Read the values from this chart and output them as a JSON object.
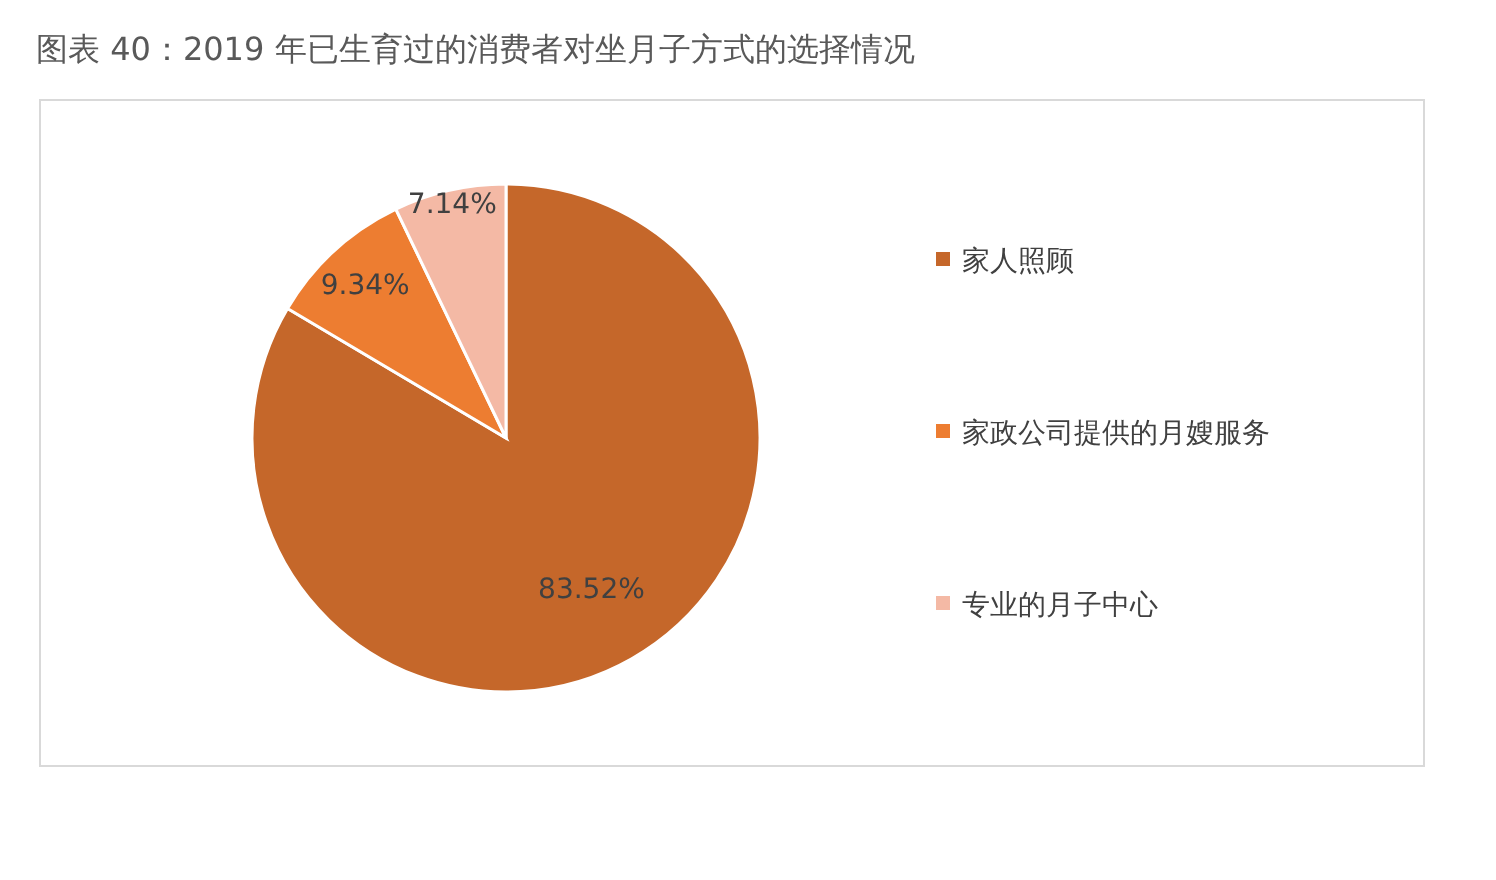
{
  "chart_data": {
    "type": "pie",
    "title": "图表 40：2019 年已生育过的消费者对坐月子方式的选择情况",
    "categories": [
      "家人照顾",
      "家政公司提供的月嫂服务",
      "专业的月子中心"
    ],
    "values": [
      83.52,
      9.34,
      7.14
    ],
    "colors": [
      "#c5672a",
      "#ed7d31",
      "#f4b9a5"
    ],
    "value_labels": [
      "83.52%",
      "9.34%",
      "7.14%"
    ],
    "legend": "right"
  }
}
